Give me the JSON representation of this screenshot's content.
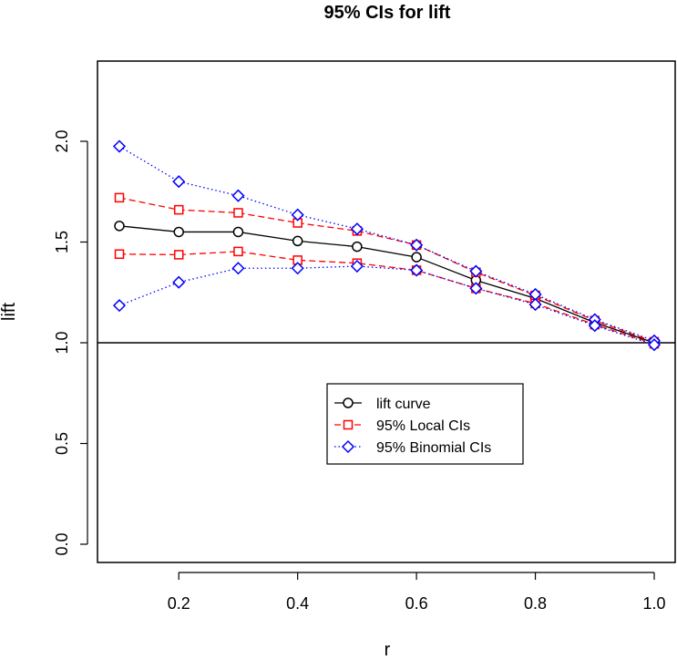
{
  "chart_data": {
    "type": "line",
    "title": "95% CIs for lift",
    "xlabel": "r",
    "ylabel": "lift",
    "xlim": [
      0.1,
      1.0
    ],
    "ylim": [
      0.0,
      2.35
    ],
    "x": [
      0.1,
      0.2,
      0.3,
      0.4,
      0.5,
      0.6,
      0.7,
      0.8,
      0.9,
      1.0
    ],
    "xticks": [
      {
        "value": 0.2,
        "label": "0.2"
      },
      {
        "value": 0.4,
        "label": "0.4"
      },
      {
        "value": 0.6,
        "label": "0.6"
      },
      {
        "value": 0.8,
        "label": "0.8"
      },
      {
        "value": 1.0,
        "label": "1.0"
      }
    ],
    "yticks": [
      {
        "value": 0.0,
        "label": "0.0"
      },
      {
        "value": 0.5,
        "label": "0.5"
      },
      {
        "value": 1.0,
        "label": "1.0"
      },
      {
        "value": 1.5,
        "label": "1.5"
      },
      {
        "value": 2.0,
        "label": "2.0"
      }
    ],
    "reference_line": {
      "y": 1.0,
      "color": "#000000"
    },
    "grid": false,
    "legend": {
      "placement": "center",
      "entries": [
        {
          "label": "lift curve",
          "color": "#000000",
          "dash": "solid",
          "marker": "circle"
        },
        {
          "label": "95% Local CIs",
          "color": "#ff0000",
          "dash": "dashed",
          "marker": "square"
        },
        {
          "label": "95% Binomial CIs",
          "color": "#0000ff",
          "dash": "dotted",
          "marker": "diamond"
        }
      ]
    },
    "series": [
      {
        "name": "lift curve",
        "color": "#000000",
        "dash": "solid",
        "marker": "circle",
        "values": [
          1.58,
          1.55,
          1.55,
          1.505,
          1.477,
          1.425,
          1.31,
          1.22,
          1.1,
          1.0
        ]
      },
      {
        "name": "95% Local CIs",
        "color": "#ff0000",
        "dash": "dashed",
        "marker": "square",
        "values": [
          1.72,
          1.66,
          1.645,
          1.595,
          1.555,
          1.485,
          1.35,
          1.235,
          1.11,
          1.005
        ]
      },
      {
        "name": "95% Local CIs",
        "color": "#ff0000",
        "dash": "dashed",
        "marker": "square",
        "values": [
          1.44,
          1.437,
          1.453,
          1.41,
          1.395,
          1.36,
          1.27,
          1.195,
          1.09,
          0.995
        ]
      },
      {
        "name": "95% Binomial CIs",
        "color": "#0000ff",
        "dash": "dotted",
        "marker": "diamond",
        "values": [
          1.975,
          1.8,
          1.73,
          1.635,
          1.565,
          1.485,
          1.355,
          1.24,
          1.115,
          1.01
        ]
      },
      {
        "name": "95% Binomial CIs",
        "color": "#0000ff",
        "dash": "dotted",
        "marker": "diamond",
        "values": [
          1.185,
          1.3,
          1.37,
          1.37,
          1.38,
          1.36,
          1.27,
          1.19,
          1.085,
          0.99
        ]
      }
    ]
  }
}
